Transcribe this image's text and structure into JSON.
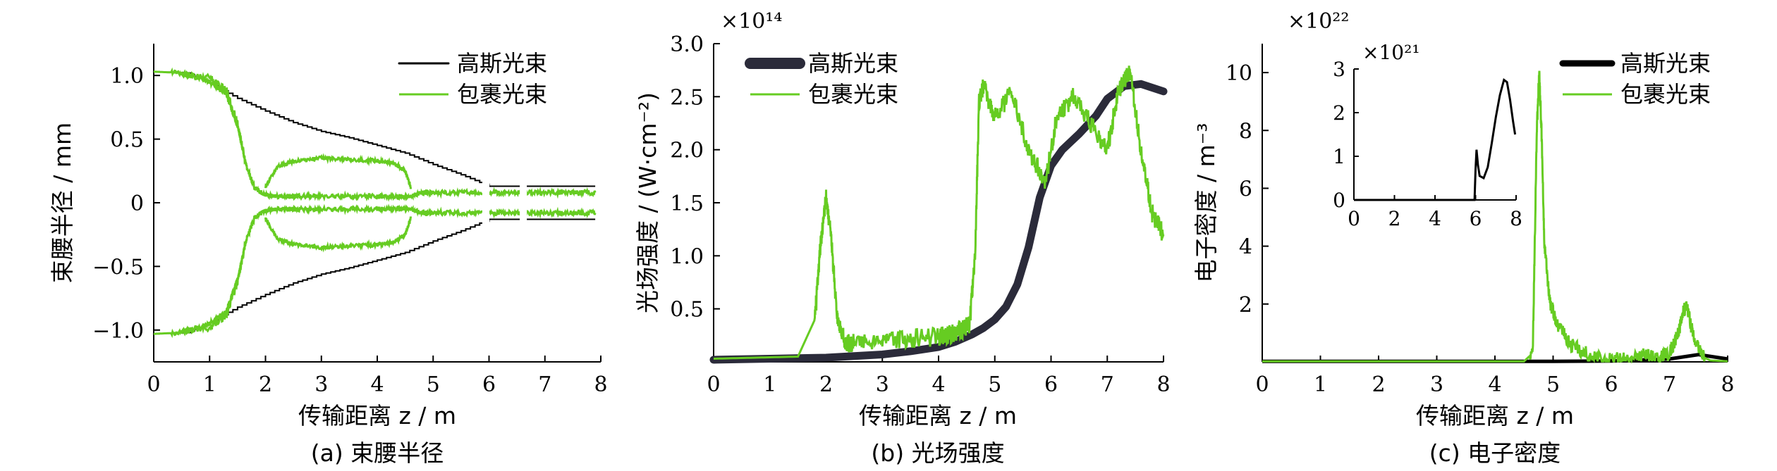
{
  "colors": {
    "gauss": "#000000",
    "gauss_b": "#2b2b3a",
    "wrapped": "#66cc22"
  },
  "chart_data": [
    {
      "type": "line",
      "caption": "(a) 束腰半径",
      "xlabel": "传输距离 z / m",
      "ylabel": "束腰半径 / mm",
      "xlim": [
        0,
        8
      ],
      "ylim": [
        -1.25,
        1.25
      ],
      "xticks": [
        "0",
        "1",
        "2",
        "3",
        "4",
        "5",
        "6",
        "7",
        "8"
      ],
      "yticks": [
        "−1.0",
        "−0.5",
        "0",
        "0.5",
        "1.0"
      ],
      "ytick_values": [
        -1.0,
        -0.5,
        0,
        0.5,
        1.0
      ],
      "legend_position": "top-right",
      "legend": [
        "高斯光束",
        "包裹光束"
      ],
      "series": [
        {
          "name": "高斯光束",
          "x": [
            0,
            0.6,
            1,
            1.5,
            2,
            2.5,
            3,
            3.5,
            4,
            4.5,
            5,
            5.5,
            6,
            7,
            7.9
          ],
          "y": [
            1.03,
            1.02,
            0.94,
            0.82,
            0.72,
            0.63,
            0.56,
            0.51,
            0.45,
            0.39,
            0.3,
            0.22,
            0.13,
            0.13,
            0.13
          ]
        },
        {
          "name": "包裹光束",
          "x": [
            0,
            0.5,
            1,
            1.3,
            1.5,
            1.65,
            1.8,
            2.0,
            2.2,
            2.5,
            3,
            3.5,
            4,
            4.3,
            4.6,
            4.8,
            5,
            5.5,
            6,
            6.5,
            7,
            7.5,
            7.9
          ],
          "y": [
            1.03,
            1.02,
            0.95,
            0.85,
            0.6,
            0.3,
            0.12,
            0.06,
            0.05,
            0.05,
            0.05,
            0.05,
            0.05,
            0.05,
            0.05,
            0.08,
            0.08,
            0.08,
            0.08,
            0.08,
            0.08,
            0.08,
            0.08
          ]
        },
        {
          "name": "包裹光束-inner",
          "x": [
            2.0,
            2.2,
            2.5,
            3,
            3.5,
            4,
            4.3,
            4.5,
            4.6
          ],
          "y": [
            0.12,
            0.28,
            0.33,
            0.35,
            0.34,
            0.33,
            0.31,
            0.25,
            0.12
          ]
        }
      ]
    },
    {
      "type": "line",
      "caption": "(b) 光场强度",
      "xlabel": "传输距离 z / m",
      "ylabel": "光场强度 / (W·cm⁻²)",
      "multiplier": "×10¹⁴",
      "xlim": [
        0,
        8
      ],
      "ylim": [
        0,
        3.0
      ],
      "xticks": [
        "0",
        "1",
        "2",
        "3",
        "4",
        "5",
        "6",
        "7",
        "8"
      ],
      "yticks": [
        "0.5",
        "1.0",
        "1.5",
        "2.0",
        "2.5",
        "3.0"
      ],
      "ytick_values": [
        0.5,
        1.0,
        1.5,
        2.0,
        2.5,
        3.0
      ],
      "legend_position": "top-left",
      "legend": [
        "高斯光束",
        "包裹光束"
      ],
      "series": [
        {
          "name": "高斯光束",
          "x": [
            0,
            1,
            2,
            3,
            3.5,
            4,
            4.3,
            4.6,
            4.8,
            5,
            5.2,
            5.4,
            5.6,
            5.8,
            6,
            6.2,
            6.5,
            6.8,
            7,
            7.3,
            7.6,
            8
          ],
          "y": [
            0.02,
            0.03,
            0.04,
            0.07,
            0.1,
            0.14,
            0.19,
            0.26,
            0.32,
            0.4,
            0.52,
            0.73,
            1.08,
            1.55,
            1.85,
            2.0,
            2.15,
            2.32,
            2.48,
            2.6,
            2.62,
            2.55
          ]
        },
        {
          "name": "包裹光束",
          "x": [
            0,
            1.5,
            1.8,
            1.9,
            2.0,
            2.1,
            2.2,
            2.35,
            2.5,
            3,
            3.5,
            4,
            4.2,
            4.4,
            4.55,
            4.65,
            4.72,
            4.8,
            5,
            5.3,
            5.6,
            5.9,
            6.1,
            6.4,
            6.7,
            7,
            7.2,
            7.4,
            7.6,
            7.8,
            8
          ],
          "y": [
            0.03,
            0.05,
            0.4,
            1.1,
            1.55,
            1.1,
            0.4,
            0.18,
            0.18,
            0.2,
            0.22,
            0.24,
            0.26,
            0.3,
            0.35,
            1.0,
            2.45,
            2.6,
            2.3,
            2.55,
            2.0,
            1.7,
            2.3,
            2.5,
            2.25,
            2.0,
            2.55,
            2.75,
            2.0,
            1.4,
            1.2
          ]
        }
      ]
    },
    {
      "type": "line",
      "caption": "(c) 电子密度",
      "xlabel": "传输距离 z / m",
      "ylabel": "电子密度 / m⁻³",
      "multiplier": "×10²²",
      "xlim": [
        0,
        8
      ],
      "ylim": [
        0,
        11
      ],
      "xticks": [
        "0",
        "1",
        "2",
        "3",
        "4",
        "5",
        "6",
        "7",
        "8"
      ],
      "yticks": [
        "2",
        "4",
        "6",
        "8",
        "10"
      ],
      "ytick_values": [
        2,
        4,
        6,
        8,
        10
      ],
      "legend_position": "top-right",
      "legend": [
        "高斯光束",
        "包裹光束"
      ],
      "series": [
        {
          "name": "高斯光束",
          "x": [
            0,
            2,
            4,
            5,
            6,
            7,
            7.5,
            8
          ],
          "y": [
            0.02,
            0.02,
            0.02,
            0.02,
            0.03,
            0.1,
            0.25,
            0.1
          ]
        },
        {
          "name": "包裹光束",
          "x": [
            0,
            4.5,
            4.65,
            4.72,
            4.76,
            4.8,
            4.85,
            4.95,
            5.1,
            5.3,
            5.6,
            5.9,
            6.2,
            6.5,
            6.8,
            7.0,
            7.15,
            7.25,
            7.3,
            7.4,
            7.55,
            7.7,
            8
          ],
          "y": [
            0.02,
            0.02,
            0.3,
            8.0,
            10.0,
            8.0,
            4.0,
            2.0,
            1.2,
            0.6,
            0.25,
            0.05,
            0.1,
            0.25,
            0.15,
            0.3,
            1.0,
            1.8,
            1.9,
            1.0,
            0.2,
            0.05,
            0.02
          ]
        }
      ],
      "inset": {
        "multiplier": "×10²¹",
        "xlim": [
          0,
          8
        ],
        "ylim": [
          0,
          3
        ],
        "xticks": [
          "0",
          "2",
          "4",
          "6",
          "8"
        ],
        "yticks": [
          "0",
          "1",
          "2",
          "3"
        ],
        "ytick_values": [
          0,
          1,
          2,
          3
        ],
        "series": [
          {
            "name": "高斯光束",
            "x": [
              0,
              5.8,
              5.95,
              6.0,
              6.05,
              6.12,
              6.2,
              6.4,
              6.6,
              6.8,
              7.0,
              7.2,
              7.4,
              7.55,
              7.7,
              7.85,
              7.95
            ],
            "y": [
              0,
              0,
              0,
              0.7,
              1.15,
              0.8,
              0.55,
              0.5,
              0.75,
              1.3,
              1.9,
              2.4,
              2.75,
              2.7,
              2.3,
              1.8,
              1.5
            ]
          }
        ]
      }
    }
  ]
}
